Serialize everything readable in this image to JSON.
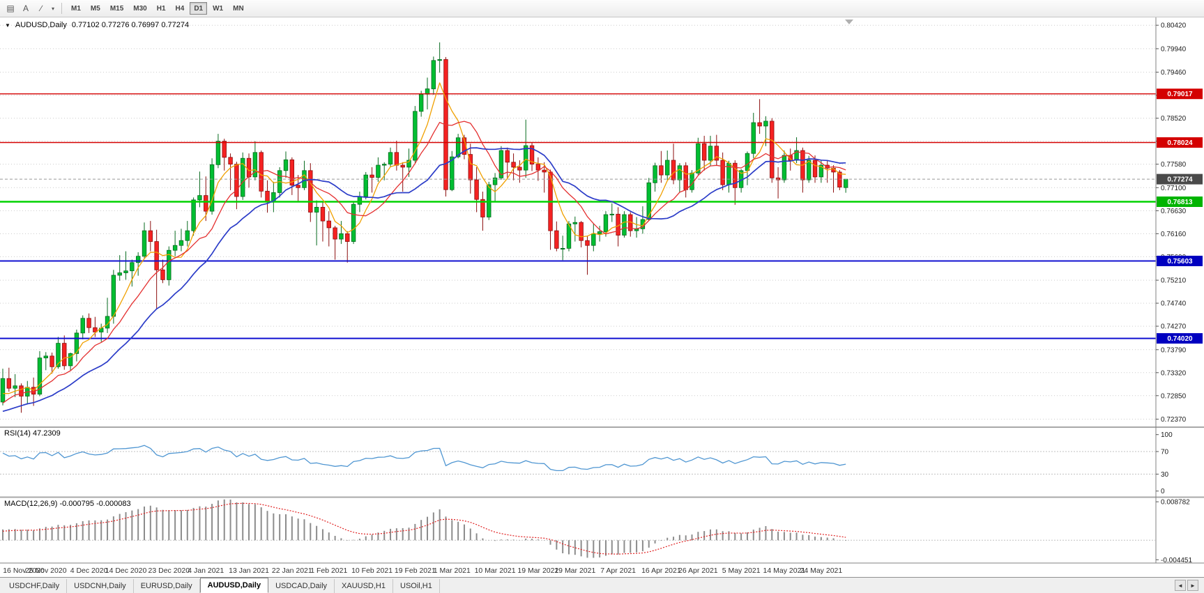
{
  "toolbar": {
    "icons": [
      {
        "name": "chart-grid-icon",
        "glyph": "▤"
      },
      {
        "name": "text-tool-icon",
        "glyph": "A"
      },
      {
        "name": "trendline-tool-icon",
        "glyph": "∕"
      },
      {
        "name": "tools-dropdown-caret-icon",
        "glyph": "▾"
      }
    ],
    "timeframes": [
      "M1",
      "M5",
      "M15",
      "M30",
      "H1",
      "H4",
      "D1",
      "W1",
      "MN"
    ],
    "active_timeframe": "D1"
  },
  "chart": {
    "marker": "▼",
    "title": "AUDUSD,Daily",
    "ohlc_text": "0.77102 0.77276 0.76997 0.77274"
  },
  "rsi_panel": {
    "label": "RSI(14) 47.2309"
  },
  "macd_panel": {
    "label": "MACD(12,26,9) -0.000795 -0.000083"
  },
  "bottom_tabs": {
    "tabs": [
      "USDCHF,Daily",
      "USDCNH,Daily",
      "EURUSD,Daily",
      "AUDUSD,Daily",
      "USDCAD,Daily",
      "XAUUSD,H1",
      "USOil,H1"
    ],
    "active": "AUDUSD,Daily",
    "scroll_icons": [
      {
        "name": "tab-scroll-left-icon",
        "glyph": "◄"
      },
      {
        "name": "tab-scroll-right-icon",
        "glyph": "►"
      }
    ]
  },
  "chart_data": {
    "type": "candlestick",
    "symbol": "AUDUSD",
    "period": "Daily",
    "up_color": "#00BE32",
    "up_stroke": "#066A1E",
    "down_color": "#F52222",
    "down_stroke": "#8C0E0E",
    "ohlc": [
      [
        0.7272,
        0.734,
        0.7265,
        0.732
      ],
      [
        0.732,
        0.7342,
        0.7293,
        0.73
      ],
      [
        0.73,
        0.7329,
        0.7282,
        0.7305
      ],
      [
        0.7305,
        0.731,
        0.725,
        0.7284
      ],
      [
        0.7284,
        0.7315,
        0.7267,
        0.7302
      ],
      [
        0.7302,
        0.7322,
        0.7264,
        0.7288
      ],
      [
        0.7288,
        0.7376,
        0.7284,
        0.7362
      ],
      [
        0.7362,
        0.7374,
        0.7337,
        0.7366
      ],
      [
        0.7366,
        0.7373,
        0.733,
        0.7344
      ],
      [
        0.7344,
        0.7405,
        0.734,
        0.7392
      ],
      [
        0.7392,
        0.7408,
        0.7338,
        0.7346
      ],
      [
        0.7346,
        0.7373,
        0.7337,
        0.7371
      ],
      [
        0.7371,
        0.742,
        0.7355,
        0.7413
      ],
      [
        0.7413,
        0.7449,
        0.74,
        0.7443
      ],
      [
        0.7443,
        0.7453,
        0.7413,
        0.7424
      ],
      [
        0.7424,
        0.7446,
        0.7405,
        0.7415
      ],
      [
        0.7415,
        0.7432,
        0.7395,
        0.7423
      ],
      [
        0.7423,
        0.7485,
        0.7413,
        0.7447
      ],
      [
        0.7447,
        0.7542,
        0.7432,
        0.7531
      ],
      [
        0.7531,
        0.7572,
        0.752,
        0.7536
      ],
      [
        0.7536,
        0.758,
        0.7522,
        0.754
      ],
      [
        0.754,
        0.7563,
        0.7508,
        0.7557
      ],
      [
        0.7557,
        0.7578,
        0.753,
        0.757
      ],
      [
        0.757,
        0.7639,
        0.7565,
        0.7622
      ],
      [
        0.7622,
        0.7642,
        0.758,
        0.76
      ],
      [
        0.76,
        0.7624,
        0.7462,
        0.7542
      ],
      [
        0.7542,
        0.7563,
        0.7515,
        0.7522
      ],
      [
        0.7522,
        0.759,
        0.751,
        0.7582
      ],
      [
        0.7582,
        0.7622,
        0.757,
        0.7592
      ],
      [
        0.7592,
        0.7626,
        0.758,
        0.7602
      ],
      [
        0.7602,
        0.7642,
        0.759,
        0.7622
      ],
      [
        0.7622,
        0.769,
        0.7612,
        0.7685
      ],
      [
        0.7685,
        0.7743,
        0.767,
        0.7694
      ],
      [
        0.7694,
        0.7733,
        0.7642,
        0.7662
      ],
      [
        0.7662,
        0.777,
        0.7655,
        0.7757
      ],
      [
        0.7757,
        0.782,
        0.775,
        0.7805
      ],
      [
        0.7805,
        0.781,
        0.7745,
        0.7772
      ],
      [
        0.7772,
        0.778,
        0.7705,
        0.7758
      ],
      [
        0.7758,
        0.7763,
        0.7666,
        0.7692
      ],
      [
        0.7692,
        0.7782,
        0.7685,
        0.777
      ],
      [
        0.777,
        0.778,
        0.771,
        0.7732
      ],
      [
        0.7732,
        0.7805,
        0.7725,
        0.7782
      ],
      [
        0.7782,
        0.7786,
        0.769,
        0.7703
      ],
      [
        0.7703,
        0.7725,
        0.7659,
        0.7682
      ],
      [
        0.7682,
        0.7722,
        0.766,
        0.77
      ],
      [
        0.77,
        0.7752,
        0.769,
        0.7745
      ],
      [
        0.7745,
        0.7784,
        0.773,
        0.7767
      ],
      [
        0.7767,
        0.7772,
        0.7695,
        0.7715
      ],
      [
        0.7715,
        0.7736,
        0.768,
        0.771
      ],
      [
        0.771,
        0.7765,
        0.7705,
        0.7745
      ],
      [
        0.7745,
        0.776,
        0.764,
        0.766
      ],
      [
        0.766,
        0.7684,
        0.7592,
        0.767
      ],
      [
        0.767,
        0.7682,
        0.76,
        0.7642
      ],
      [
        0.7642,
        0.7662,
        0.759,
        0.7628
      ],
      [
        0.7628,
        0.7632,
        0.7563,
        0.7605
      ],
      [
        0.7605,
        0.7642,
        0.7595,
        0.7616
      ],
      [
        0.7616,
        0.7621,
        0.7557,
        0.76
      ],
      [
        0.76,
        0.7682,
        0.7595,
        0.7676
      ],
      [
        0.7676,
        0.7702,
        0.766,
        0.7692
      ],
      [
        0.7692,
        0.7742,
        0.7686,
        0.7736
      ],
      [
        0.7736,
        0.7752,
        0.77,
        0.7731
      ],
      [
        0.7731,
        0.7772,
        0.7722,
        0.7756
      ],
      [
        0.7756,
        0.7762,
        0.7725,
        0.7758
      ],
      [
        0.7758,
        0.7792,
        0.7752,
        0.7782
      ],
      [
        0.7782,
        0.7806,
        0.7745,
        0.7756
      ],
      [
        0.7756,
        0.7762,
        0.7702,
        0.7752
      ],
      [
        0.7752,
        0.779,
        0.7732,
        0.7766
      ],
      [
        0.7766,
        0.7877,
        0.7761,
        0.7866
      ],
      [
        0.7866,
        0.7908,
        0.7855,
        0.7901
      ],
      [
        0.7901,
        0.7935,
        0.787,
        0.7912
      ],
      [
        0.7912,
        0.7978,
        0.79,
        0.797
      ],
      [
        0.797,
        0.8007,
        0.7945,
        0.7972
      ],
      [
        0.7972,
        0.7977,
        0.7692,
        0.7706
      ],
      [
        0.7706,
        0.7785,
        0.7703,
        0.7773
      ],
      [
        0.7773,
        0.782,
        0.777,
        0.7812
      ],
      [
        0.7812,
        0.7818,
        0.7768,
        0.7778
      ],
      [
        0.7778,
        0.78,
        0.7698,
        0.7726
      ],
      [
        0.7726,
        0.7752,
        0.766,
        0.7686
      ],
      [
        0.7686,
        0.7702,
        0.7622,
        0.765
      ],
      [
        0.765,
        0.7722,
        0.7644,
        0.7716
      ],
      [
        0.7716,
        0.774,
        0.768,
        0.773
      ],
      [
        0.773,
        0.7795,
        0.7726,
        0.7786
      ],
      [
        0.7786,
        0.7792,
        0.773,
        0.7762
      ],
      [
        0.7762,
        0.778,
        0.7725,
        0.7752
      ],
      [
        0.7752,
        0.7766,
        0.772,
        0.7746
      ],
      [
        0.7746,
        0.7849,
        0.773,
        0.7796
      ],
      [
        0.7796,
        0.7802,
        0.7744,
        0.7758
      ],
      [
        0.7758,
        0.7772,
        0.7724,
        0.7746
      ],
      [
        0.7746,
        0.7762,
        0.77,
        0.7742
      ],
      [
        0.7742,
        0.7747,
        0.7583,
        0.7622
      ],
      [
        0.7622,
        0.7641,
        0.758,
        0.7586
      ],
      [
        0.7586,
        0.7612,
        0.7562,
        0.7586
      ],
      [
        0.7586,
        0.7642,
        0.758,
        0.7636
      ],
      [
        0.7636,
        0.7651,
        0.76,
        0.7639
      ],
      [
        0.7639,
        0.7642,
        0.7588,
        0.7602
      ],
      [
        0.7602,
        0.7612,
        0.7532,
        0.7592
      ],
      [
        0.7592,
        0.7637,
        0.758,
        0.7616
      ],
      [
        0.7616,
        0.7632,
        0.76,
        0.762
      ],
      [
        0.762,
        0.7662,
        0.761,
        0.7655
      ],
      [
        0.7655,
        0.7678,
        0.764,
        0.7656
      ],
      [
        0.7656,
        0.767,
        0.759,
        0.7613
      ],
      [
        0.7613,
        0.7662,
        0.7608,
        0.7655
      ],
      [
        0.7655,
        0.766,
        0.761,
        0.7622
      ],
      [
        0.7622,
        0.765,
        0.7608,
        0.7626
      ],
      [
        0.7626,
        0.7672,
        0.7616,
        0.7645
      ],
      [
        0.7645,
        0.773,
        0.7642,
        0.772
      ],
      [
        0.772,
        0.7761,
        0.7702,
        0.7755
      ],
      [
        0.7755,
        0.7785,
        0.772,
        0.7736
      ],
      [
        0.7736,
        0.7786,
        0.7726,
        0.7766
      ],
      [
        0.7766,
        0.78,
        0.7717,
        0.7726
      ],
      [
        0.7726,
        0.776,
        0.77,
        0.7755
      ],
      [
        0.7755,
        0.7762,
        0.769,
        0.7706
      ],
      [
        0.7706,
        0.7746,
        0.77,
        0.774
      ],
      [
        0.774,
        0.7812,
        0.7736,
        0.78
      ],
      [
        0.78,
        0.7816,
        0.7745,
        0.7766
      ],
      [
        0.7766,
        0.7816,
        0.7755,
        0.7795
      ],
      [
        0.7795,
        0.7818,
        0.7755,
        0.7766
      ],
      [
        0.7766,
        0.7782,
        0.7705,
        0.7716
      ],
      [
        0.7716,
        0.7765,
        0.77,
        0.776
      ],
      [
        0.776,
        0.7766,
        0.7675,
        0.771
      ],
      [
        0.771,
        0.7748,
        0.77,
        0.7745
      ],
      [
        0.7745,
        0.7784,
        0.7715,
        0.778
      ],
      [
        0.778,
        0.7863,
        0.777,
        0.7843
      ],
      [
        0.7843,
        0.7891,
        0.782,
        0.7836
      ],
      [
        0.7836,
        0.7856,
        0.7795,
        0.7846
      ],
      [
        0.7846,
        0.7852,
        0.772,
        0.773
      ],
      [
        0.773,
        0.7752,
        0.7688,
        0.7726
      ],
      [
        0.7726,
        0.7786,
        0.772,
        0.7776
      ],
      [
        0.7776,
        0.779,
        0.7745,
        0.7766
      ],
      [
        0.7766,
        0.7813,
        0.776,
        0.7786
      ],
      [
        0.7786,
        0.7792,
        0.77,
        0.7726
      ],
      [
        0.7726,
        0.7775,
        0.772,
        0.7766
      ],
      [
        0.7766,
        0.7776,
        0.772,
        0.7732
      ],
      [
        0.7732,
        0.7766,
        0.772,
        0.7756
      ],
      [
        0.7756,
        0.7766,
        0.772,
        0.775
      ],
      [
        0.775,
        0.7756,
        0.77,
        0.7742
      ],
      [
        0.7742,
        0.7746,
        0.7705,
        0.7711
      ],
      [
        0.77102,
        0.77276,
        0.76997,
        0.77274
      ]
    ],
    "pre_closes": [
      0.7162,
      0.7148,
      0.717,
      0.7185,
      0.7172,
      0.719,
      0.7205,
      0.7192,
      0.718,
      0.7196,
      0.721,
      0.7225,
      0.7212,
      0.7198,
      0.7215,
      0.723,
      0.7222,
      0.7208,
      0.7225,
      0.724,
      0.7272,
      0.726,
      0.7248,
      0.7235,
      0.7222,
      0.721,
      0.723,
      0.7252,
      0.727,
      0.7288,
      0.73,
      0.7282,
      0.7265,
      0.728
    ],
    "date_labels": [
      {
        "t": "16 Nov 2020",
        "i": 0
      },
      {
        "t": "25 Nov 2020",
        "i": 7
      },
      {
        "t": "4 Dec 2020",
        "i": 14
      },
      {
        "t": "14 Dec 2020",
        "i": 20
      },
      {
        "t": "23 Dec 2020",
        "i": 27
      },
      {
        "t": "4 Jan 2021",
        "i": 33
      },
      {
        "t": "13 Jan 2021",
        "i": 40
      },
      {
        "t": "22 Jan 2021",
        "i": 47
      },
      {
        "t": "1 Feb 2021",
        "i": 53
      },
      {
        "t": "10 Feb 2021",
        "i": 60
      },
      {
        "t": "19 Feb 2021",
        "i": 67
      },
      {
        "t": "1 Mar 2021",
        "i": 73
      },
      {
        "t": "10 Mar 2021",
        "i": 80
      },
      {
        "t": "19 Mar 2021",
        "i": 87
      },
      {
        "t": "29 Mar 2021",
        "i": 93
      },
      {
        "t": "7 Apr 2021",
        "i": 100
      },
      {
        "t": "16 Apr 2021",
        "i": 107
      },
      {
        "t": "26 Apr 2021",
        "i": 113
      },
      {
        "t": "5 May 2021",
        "i": 120
      },
      {
        "t": "14 May 2021",
        "i": 127
      },
      {
        "t": "24 May 2021",
        "i": 133
      }
    ],
    "price_axis": {
      "ticks": [
        "0.80420",
        "0.79940",
        "0.79460",
        "0.78990",
        "0.78520",
        "0.78050",
        "0.77580",
        "0.77100",
        "0.76630",
        "0.76160",
        "0.75690",
        "0.75210",
        "0.74740",
        "0.74270",
        "0.73790",
        "0.73320",
        "0.72850",
        "0.72370"
      ],
      "view_max": 0.8058,
      "view_min": 0.7222
    },
    "hlines": [
      {
        "value": 0.79017,
        "label": "0.79017",
        "color": "#D40000",
        "badge_color": "#D40000",
        "width": 1.4
      },
      {
        "value": 0.78024,
        "label": "0.78024",
        "color": "#D40000",
        "badge_color": "#D40000",
        "width": 1.4
      },
      {
        "value": 0.76813,
        "label": "0.76813",
        "color": "#00D200",
        "badge_color": "#00B400",
        "width": 2.6
      },
      {
        "value": 0.75603,
        "label": "0.75603",
        "color": "#1010D0",
        "badge_color": "#0000C0",
        "width": 2
      },
      {
        "value": 0.7402,
        "label": "0.74020",
        "color": "#1010D0",
        "badge_color": "#0000C0",
        "width": 2
      }
    ],
    "current_price": {
      "value": 0.77274,
      "label": "0.77274",
      "badge_color": "#4A4A4A"
    },
    "moving_averages": [
      {
        "period": 5,
        "color": "#F0A000",
        "width": 1.3
      },
      {
        "period": 10,
        "color": "#E43030",
        "width": 1.3
      },
      {
        "period": 20,
        "color": "#2B3CC8",
        "width": 1.7
      }
    ],
    "rsi": {
      "period": 14,
      "value": 47.2309,
      "color": "#4F96D2",
      "levels": [
        70,
        30
      ],
      "axis_ticks": [
        "100",
        "70",
        "30",
        "0"
      ]
    },
    "macd": {
      "fast": 12,
      "slow": 26,
      "signal_period": 9,
      "value": -0.000795,
      "signal_value": -8.3e-05,
      "bar_color": "#8C8C8C",
      "signal_color": "#E02020",
      "axis_ticks": [
        "0.008782",
        "-0.004451"
      ],
      "view_max": 0.0096,
      "view_min": -0.0052
    }
  }
}
